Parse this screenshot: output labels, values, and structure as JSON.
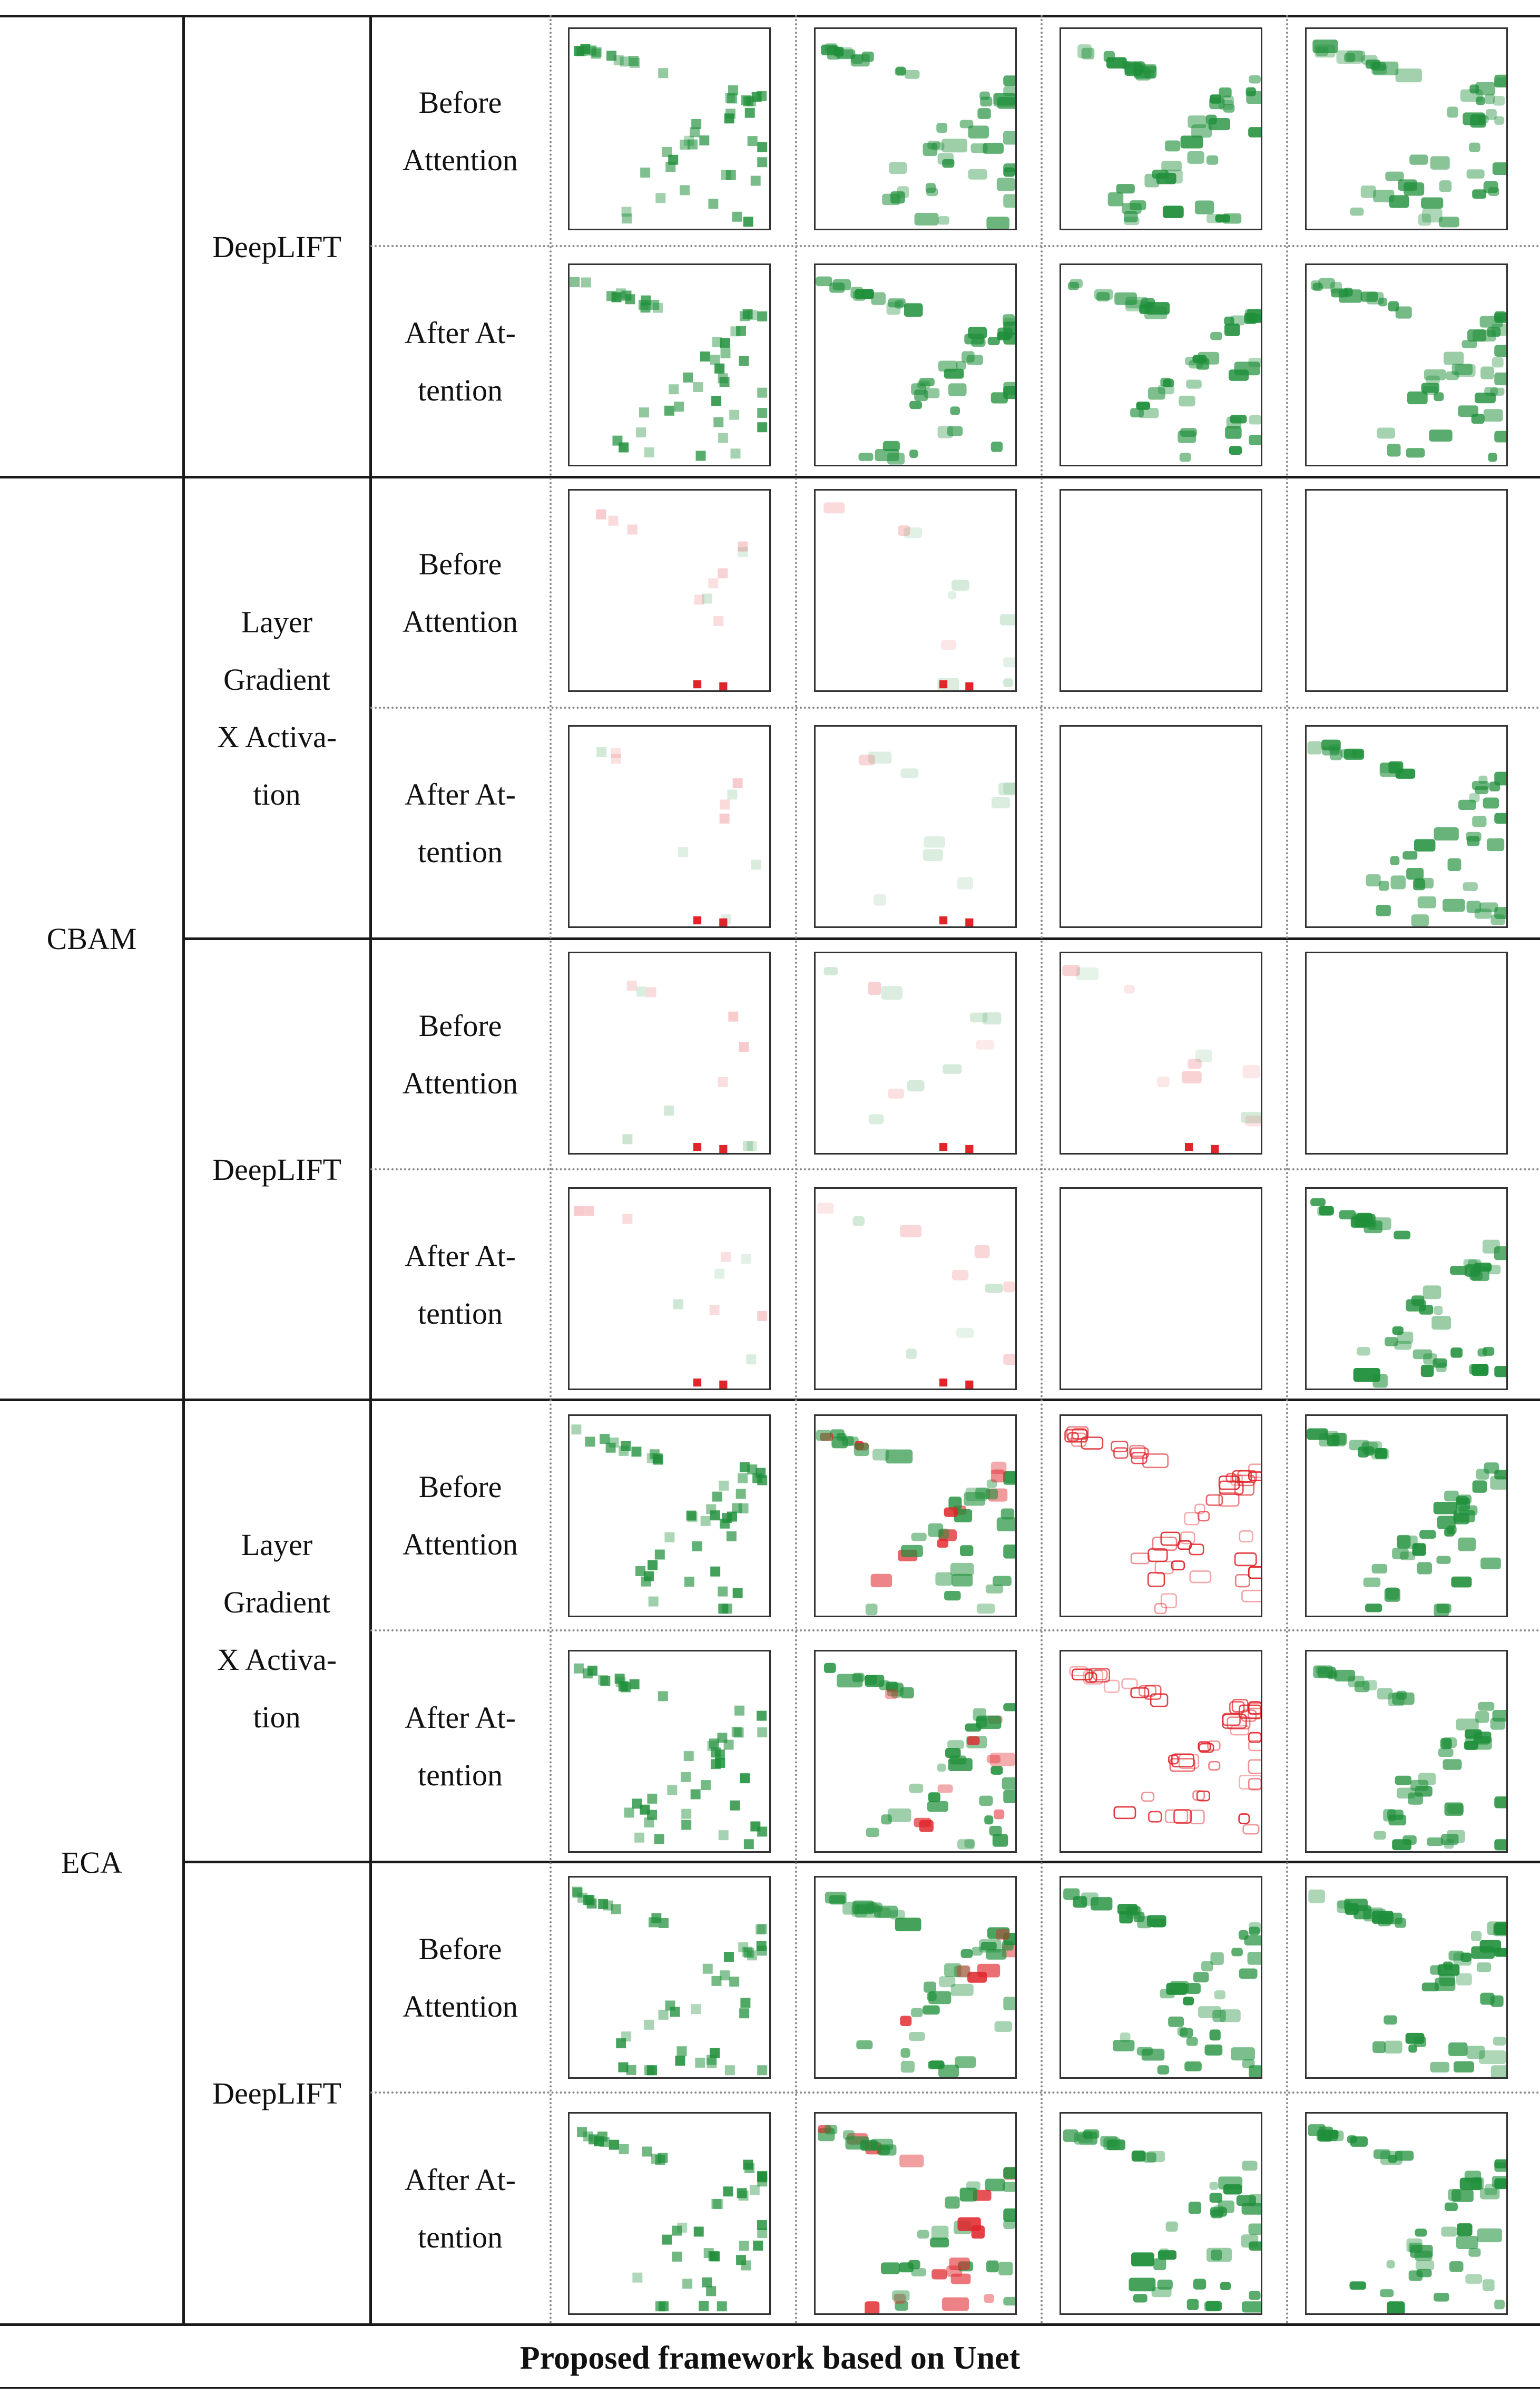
{
  "table": {
    "groups": [
      {
        "id": "top",
        "label": "",
        "methods": [
          {
            "name_lines": [
              "DeepLIFT"
            ],
            "rows": [
              {
                "state_lines": [
                  "Before",
                  "Attention"
                ],
                "palettes": [
                  "green",
                  "green",
                  "green",
                  "green"
                ],
                "densities": [
                  0.9,
                  0.9,
                  1.0,
                  0.8
                ]
              },
              {
                "state_lines": [
                  "After At-",
                  "tention"
                ],
                "palettes": [
                  "green",
                  "green",
                  "green",
                  "green"
                ],
                "densities": [
                  0.9,
                  0.9,
                  1.0,
                  0.8
                ]
              }
            ]
          }
        ]
      },
      {
        "id": "cbam",
        "label": "CBAM",
        "methods": [
          {
            "name_lines": [
              "Layer",
              "Gradient",
              "X Activa-",
              "tion"
            ],
            "rows": [
              {
                "state_lines": [
                  "Before",
                  "Attention"
                ],
                "palettes": [
                  "faint-red",
                  "faint-mixed",
                  "empty",
                  "empty"
                ],
                "densities": [
                  0.3,
                  0.2,
                  0.05,
                  0.0
                ]
              },
              {
                "state_lines": [
                  "After At-",
                  "tention"
                ],
                "palettes": [
                  "faint-red",
                  "faint-mixed",
                  "empty",
                  "green"
                ],
                "densities": [
                  0.3,
                  0.2,
                  0.05,
                  1.0
                ]
              }
            ]
          },
          {
            "name_lines": [
              "DeepLIFT"
            ],
            "rows": [
              {
                "state_lines": [
                  "Before",
                  "Attention"
                ],
                "palettes": [
                  "faint-red",
                  "faint-mixed",
                  "faint-mixed",
                  "empty"
                ],
                "densities": [
                  0.3,
                  0.2,
                  0.2,
                  0.0
                ]
              },
              {
                "state_lines": [
                  "After At-",
                  "tention"
                ],
                "palettes": [
                  "faint-red",
                  "faint-mixed",
                  "empty",
                  "green"
                ],
                "densities": [
                  0.3,
                  0.2,
                  0.05,
                  1.0
                ]
              }
            ]
          }
        ]
      },
      {
        "id": "eca",
        "label": "ECA",
        "methods": [
          {
            "name_lines": [
              "Layer",
              "Gradient",
              "X Activa-",
              "tion"
            ],
            "rows": [
              {
                "state_lines": [
                  "Before",
                  "Attention"
                ],
                "palettes": [
                  "green",
                  "green-red",
                  "red",
                  "green"
                ],
                "densities": [
                  0.9,
                  0.9,
                  1.0,
                  1.0
                ]
              },
              {
                "state_lines": [
                  "After At-",
                  "tention"
                ],
                "palettes": [
                  "green",
                  "green-red",
                  "red",
                  "green"
                ],
                "densities": [
                  0.9,
                  0.9,
                  1.0,
                  1.0
                ]
              }
            ]
          },
          {
            "name_lines": [
              "DeepLIFT"
            ],
            "rows": [
              {
                "state_lines": [
                  "Before",
                  "Attention"
                ],
                "palettes": [
                  "green",
                  "green-red",
                  "green",
                  "green"
                ],
                "densities": [
                  0.9,
                  0.9,
                  1.0,
                  1.0
                ]
              },
              {
                "state_lines": [
                  "After At-",
                  "tention"
                ],
                "palettes": [
                  "green",
                  "green-red",
                  "green",
                  "green"
                ],
                "densities": [
                  0.9,
                  0.9,
                  1.0,
                  1.0
                ]
              }
            ]
          }
        ]
      }
    ],
    "caption": "Proposed framework based on Unet",
    "colors": {
      "positive": "#1f8f3a",
      "negative": "#e0242a",
      "rule": "#1a1a1a"
    }
  }
}
